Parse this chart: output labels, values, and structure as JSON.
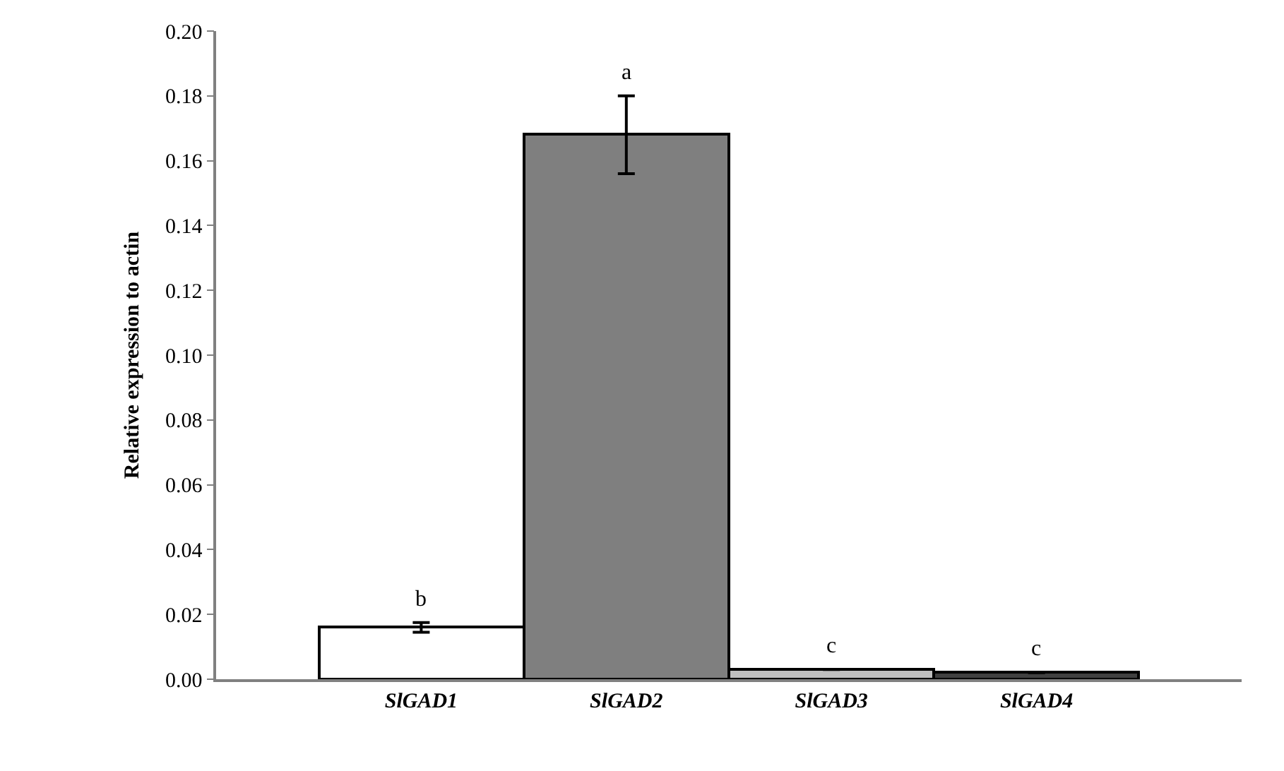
{
  "chart_data": {
    "type": "bar",
    "ylabel": "Relative expression to actin",
    "categories": [
      "SlGAD1",
      "SlGAD2",
      "SlGAD3",
      "SlGAD4"
    ],
    "values": [
      0.016,
      0.168,
      0.003,
      0.002
    ],
    "errors": [
      0.0015,
      0.012,
      null,
      null
    ],
    "colors": [
      "#ffffff",
      "#7f7f7f",
      "#bfbfbf",
      "#404040"
    ],
    "ylim": [
      0,
      0.2
    ],
    "yticks": [
      {
        "value": 0,
        "label": "0.00"
      },
      {
        "value": 0.02,
        "label": "0.02"
      },
      {
        "value": 0.04,
        "label": "0.04"
      },
      {
        "value": 0.06,
        "label": "0.06"
      },
      {
        "value": 0.08,
        "label": "0.08"
      },
      {
        "value": 0.1,
        "label": "0.10"
      },
      {
        "value": 0.12,
        "label": "0.12"
      },
      {
        "value": 0.14,
        "label": "0.14"
      },
      {
        "value": 0.16,
        "label": "0.16"
      },
      {
        "value": 0.18,
        "label": "0.18"
      },
      {
        "value": 0.2,
        "label": "0.20"
      }
    ],
    "annotations": [
      "b",
      "a",
      "c",
      "c"
    ]
  }
}
